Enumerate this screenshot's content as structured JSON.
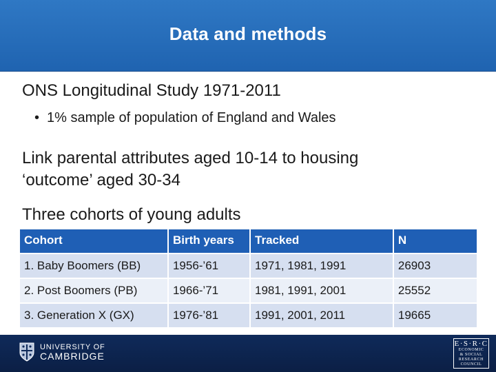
{
  "slide": {
    "title": "Data and methods",
    "section1": {
      "heading": "ONS Longitudinal Study 1971-2011",
      "bullet": "1% sample of population of England and Wales"
    },
    "section2": {
      "line1": "Link parental attributes aged 10-14 to housing",
      "line2": "‘outcome’ aged 30-34"
    },
    "section3": {
      "heading": "Three cohorts of young adults"
    },
    "table": {
      "headers": [
        "Cohort",
        "Birth years",
        "Tracked",
        "N"
      ],
      "rows": [
        [
          "1. Baby Boomers (BB)",
          "1956-’61",
          "1971, 1981, 1991",
          "26903"
        ],
        [
          "2. Post Boomers (PB)",
          "1966-’71",
          "1981, 1991, 2001",
          "25552"
        ],
        [
          "3. Generation X (GX)",
          "1976-’81",
          "1991, 2001, 2011",
          "19665"
        ]
      ]
    }
  },
  "footer": {
    "university_line1": "UNIVERSITY OF",
    "university_line2": "CAMBRIDGE",
    "esrc_letters": "E·S·R·C",
    "esrc_line1": "ECONOMIC",
    "esrc_line2": "& SOCIAL",
    "esrc_line3": "RESEARCH",
    "esrc_line4": "COUNCIL"
  },
  "colors": {
    "header": "#1f63b0",
    "table_header": "#1f5fb5",
    "row_odd": "#d6dff0",
    "row_even": "#ebf0f8",
    "footer": "#0f2a5a"
  }
}
